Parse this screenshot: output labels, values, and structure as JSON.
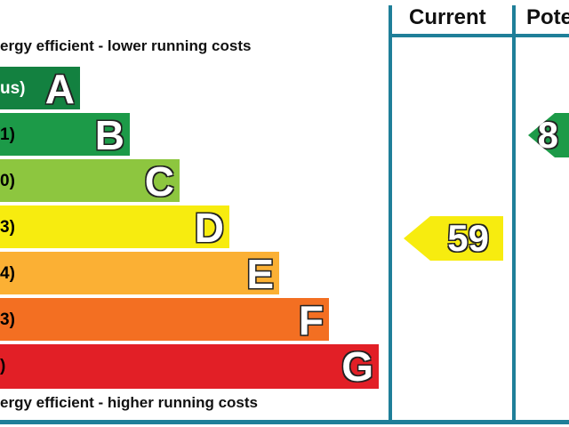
{
  "chart_data": {
    "type": "bar",
    "captions": {
      "top": "ergy efficient - lower running costs",
      "bottom": "ergy efficient - higher running costs"
    },
    "columns": {
      "current": "Current",
      "potential": "Pote"
    },
    "bands": [
      {
        "range": "us)",
        "letter": "A",
        "color": "#138140"
      },
      {
        "range": "1)",
        "letter": "B",
        "color": "#1c9a48"
      },
      {
        "range": "0)",
        "letter": "C",
        "color": "#8dc63f"
      },
      {
        "range": "3)",
        "letter": "D",
        "color": "#f7ec0f"
      },
      {
        "range": "4)",
        "letter": "E",
        "color": "#fbb034"
      },
      {
        "range": "3)",
        "letter": "F",
        "color": "#f36f22"
      },
      {
        "range": ")",
        "letter": "G",
        "color": "#e21f26"
      }
    ],
    "current_rating": {
      "value": "59",
      "band": "D",
      "color": "#f7ec0f"
    },
    "potential_rating": {
      "value": "8",
      "band": "B",
      "color": "#1c9a48"
    }
  }
}
